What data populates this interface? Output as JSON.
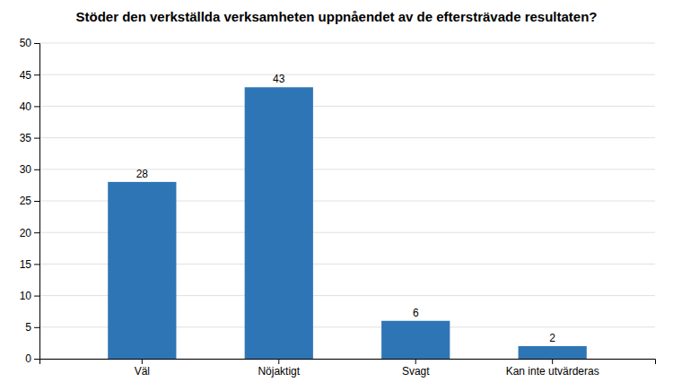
{
  "chart_data": {
    "type": "bar",
    "title": "Stöder den verkställda verksamheten uppnåendet av de eftersträvade resultaten?",
    "categories": [
      "Väl",
      "Nöjaktigt",
      "Svagt",
      "Kan inte utvärderas"
    ],
    "values": [
      28,
      43,
      6,
      2
    ],
    "color": "#2E75B6",
    "ylim": [
      0,
      50
    ],
    "yticks": [
      0,
      5,
      10,
      15,
      20,
      25,
      30,
      35,
      40,
      45,
      50
    ],
    "grid": true,
    "data_labels": true
  }
}
